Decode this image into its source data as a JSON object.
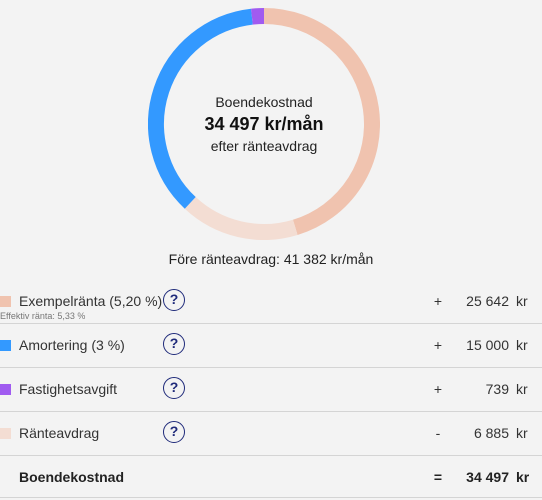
{
  "colors": {
    "interest": "#f0c3af",
    "amortization": "#3399ff",
    "property_fee": "#a05bf0",
    "interest_deduction": "#f3ddd3",
    "help_icon": "#1f2a7a"
  },
  "donut": {
    "label": "Boendekostnad",
    "value": "34 497 kr/mån",
    "sublabel": "efter ränteavdrag",
    "segments": [
      {
        "name": "Exempelränta",
        "value": 18757,
        "color": "#f0c3af"
      },
      {
        "name": "Ränteavdrag",
        "value": 6885,
        "color": "#f3ddd3"
      },
      {
        "name": "Amortering",
        "value": 15000,
        "color": "#3399ff"
      },
      {
        "name": "Fastighetsavgift",
        "value": 739,
        "color": "#a05bf0"
      }
    ]
  },
  "before_deduction": "Före ränteavdrag: 41 382 kr/mån",
  "rows": [
    {
      "label": "Exempelränta (5,20 %)",
      "sub": "Effektiv ränta: 5,33 %",
      "op": "+",
      "amount": "25 642",
      "unit": "kr",
      "color": "#f0c3af",
      "icon": "question-icon"
    },
    {
      "label": "Amortering (3 %)",
      "op": "+",
      "amount": "15 000",
      "unit": "kr",
      "color": "#3399ff",
      "icon": "question-icon"
    },
    {
      "label": "Fastighetsavgift",
      "op": "+",
      "amount": "739",
      "unit": "kr",
      "color": "#a05bf0",
      "icon": "question-icon"
    },
    {
      "label": "Ränteavdrag",
      "op": "-",
      "amount": "6 885",
      "unit": "kr",
      "color": "#f3ddd3",
      "icon": "question-icon"
    }
  ],
  "total": {
    "label": "Boendekostnad",
    "op": "=",
    "amount": "34 497",
    "unit": "kr"
  },
  "help_glyph": "?"
}
